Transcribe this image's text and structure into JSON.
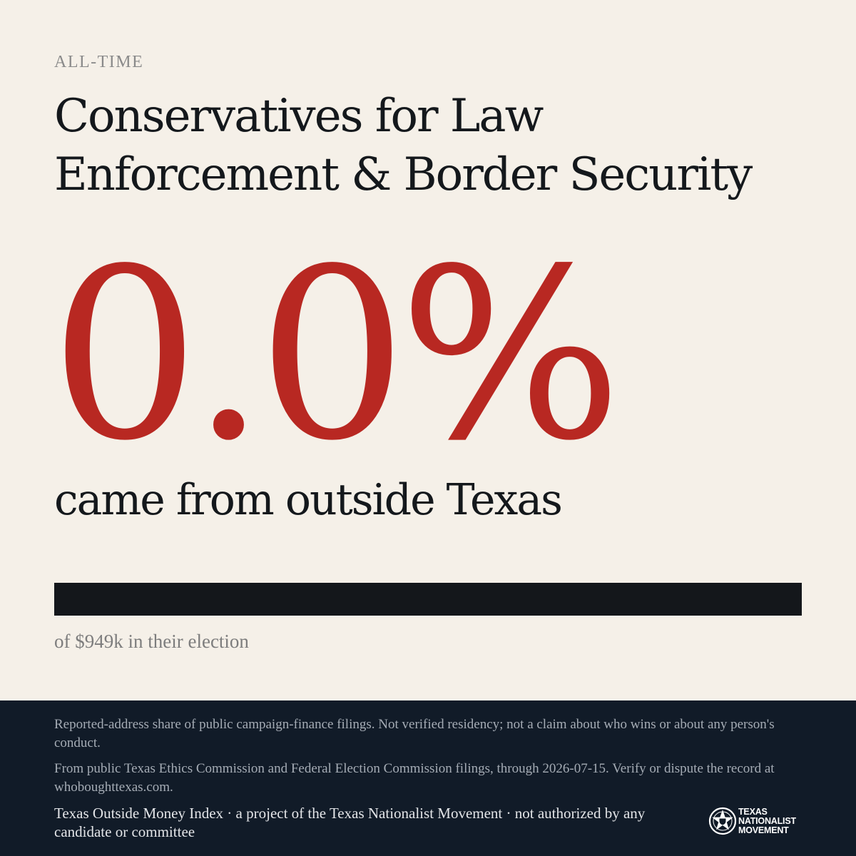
{
  "header": {
    "period_label": "ALL-TIME",
    "committee_name": "Conservatives for Law Enforcement & Border Security"
  },
  "stat": {
    "percent_label": "0.0%",
    "caption": "came from outside Texas",
    "outside_share_fraction": 0.0,
    "total_label": "of $949k in their election"
  },
  "colors": {
    "accent": "#b82822",
    "ink": "#14171b",
    "background": "#f5f0e8",
    "footer_bg": "#111b28"
  },
  "footer": {
    "disclaimer": "Reported-address share of public campaign-finance filings. Not verified residency; not a claim about who wins or about any person's conduct.",
    "source": "From public Texas Ethics Commission and Federal Election Commission filings, through 2026-07-15. Verify or dispute the record at whoboughttexas.com.",
    "attribution": "Texas Outside Money Index · a project of the Texas Nationalist Movement · not authorized by any candidate or committee",
    "logo": {
      "icon": "star-seal-icon",
      "line1": "TEXAS",
      "line2": "NATIONALIST",
      "line3": "MOVEMENT"
    }
  }
}
